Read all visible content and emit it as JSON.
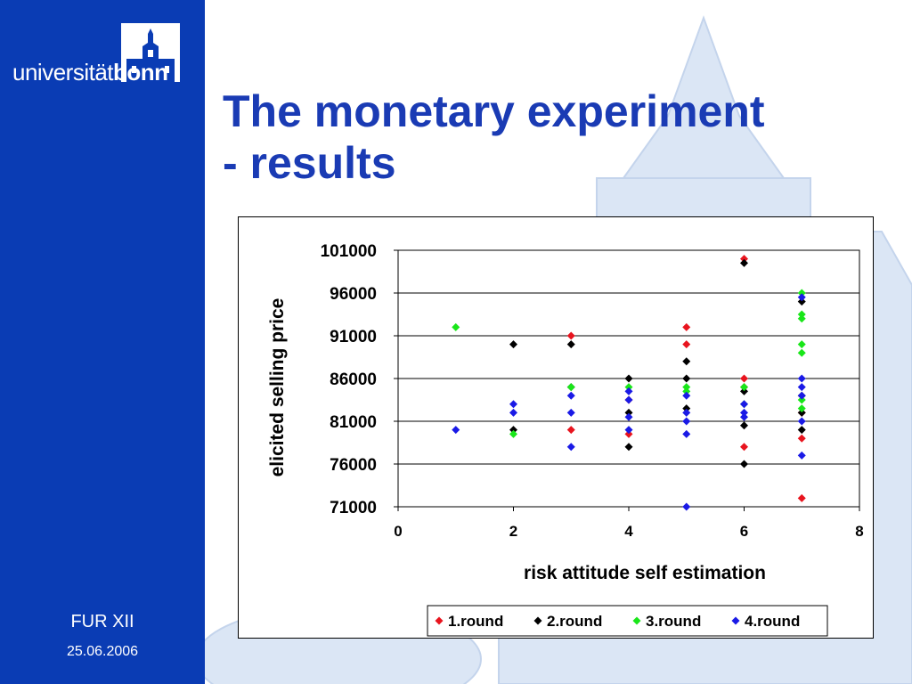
{
  "slide": {
    "title_line1": "The monetary experiment",
    "title_line2": "- results",
    "logo_prefix": "universität",
    "logo_suffix": "bonn",
    "footer_conf": "FUR XII",
    "footer_date": "25.06.2006"
  },
  "colors": {
    "sidebar": "#0a3cb4",
    "title": "#1a3bb4"
  },
  "chart_data": {
    "type": "scatter",
    "title": "",
    "xlabel": "risk attitude self estimation",
    "ylabel": "elicited selling price",
    "xlim": [
      0,
      8
    ],
    "ylim": [
      71000,
      101000
    ],
    "xticks": [
      0,
      2,
      4,
      6,
      8
    ],
    "yticks": [
      71000,
      76000,
      81000,
      86000,
      91000,
      96000,
      101000
    ],
    "grid": "horizontal",
    "legend_position": "bottom",
    "marker": "diamond",
    "series": [
      {
        "name": "1.round",
        "color": "#e8141e",
        "points": [
          [
            3,
            91000
          ],
          [
            3,
            80000
          ],
          [
            4,
            79500
          ],
          [
            4,
            83500
          ],
          [
            5,
            92000
          ],
          [
            5,
            90000
          ],
          [
            6,
            100000
          ],
          [
            6,
            86000
          ],
          [
            6,
            85000
          ],
          [
            6,
            78000
          ],
          [
            7,
            79000
          ],
          [
            7,
            72000
          ],
          [
            7,
            82000
          ]
        ]
      },
      {
        "name": "2.round",
        "color": "#000000",
        "points": [
          [
            2,
            90000
          ],
          [
            2,
            80000
          ],
          [
            3,
            90000
          ],
          [
            3,
            85000
          ],
          [
            4,
            86000
          ],
          [
            4,
            78000
          ],
          [
            4,
            82000
          ],
          [
            5,
            88000
          ],
          [
            5,
            86000
          ],
          [
            5,
            82500
          ],
          [
            6,
            99500
          ],
          [
            6,
            84500
          ],
          [
            6,
            80500
          ],
          [
            6,
            76000
          ],
          [
            7,
            95000
          ],
          [
            7,
            80000
          ],
          [
            7,
            82000
          ],
          [
            7,
            84000
          ]
        ]
      },
      {
        "name": "3.round",
        "color": "#19e619",
        "points": [
          [
            1,
            92000
          ],
          [
            2,
            79500
          ],
          [
            3,
            85000
          ],
          [
            4,
            85000
          ],
          [
            5,
            85000
          ],
          [
            5,
            84500
          ],
          [
            6,
            85000
          ],
          [
            6,
            83000
          ],
          [
            7,
            96000
          ],
          [
            7,
            93500
          ],
          [
            7,
            93000
          ],
          [
            7,
            90000
          ],
          [
            7,
            89000
          ],
          [
            7,
            83500
          ],
          [
            7,
            82500
          ]
        ]
      },
      {
        "name": "4.round",
        "color": "#1a1ae6",
        "points": [
          [
            1,
            80000
          ],
          [
            2,
            83000
          ],
          [
            2,
            82000
          ],
          [
            3,
            84000
          ],
          [
            3,
            82000
          ],
          [
            3,
            78000
          ],
          [
            4,
            84500
          ],
          [
            4,
            83500
          ],
          [
            4,
            81500
          ],
          [
            4,
            80000
          ],
          [
            5,
            84000
          ],
          [
            5,
            82000
          ],
          [
            5,
            81000
          ],
          [
            5,
            79500
          ],
          [
            5,
            71000
          ],
          [
            6,
            83000
          ],
          [
            6,
            82000
          ],
          [
            6,
            81500
          ],
          [
            7,
            95500
          ],
          [
            7,
            86000
          ],
          [
            7,
            85000
          ],
          [
            7,
            84000
          ],
          [
            7,
            81000
          ],
          [
            7,
            77000
          ]
        ]
      }
    ]
  }
}
